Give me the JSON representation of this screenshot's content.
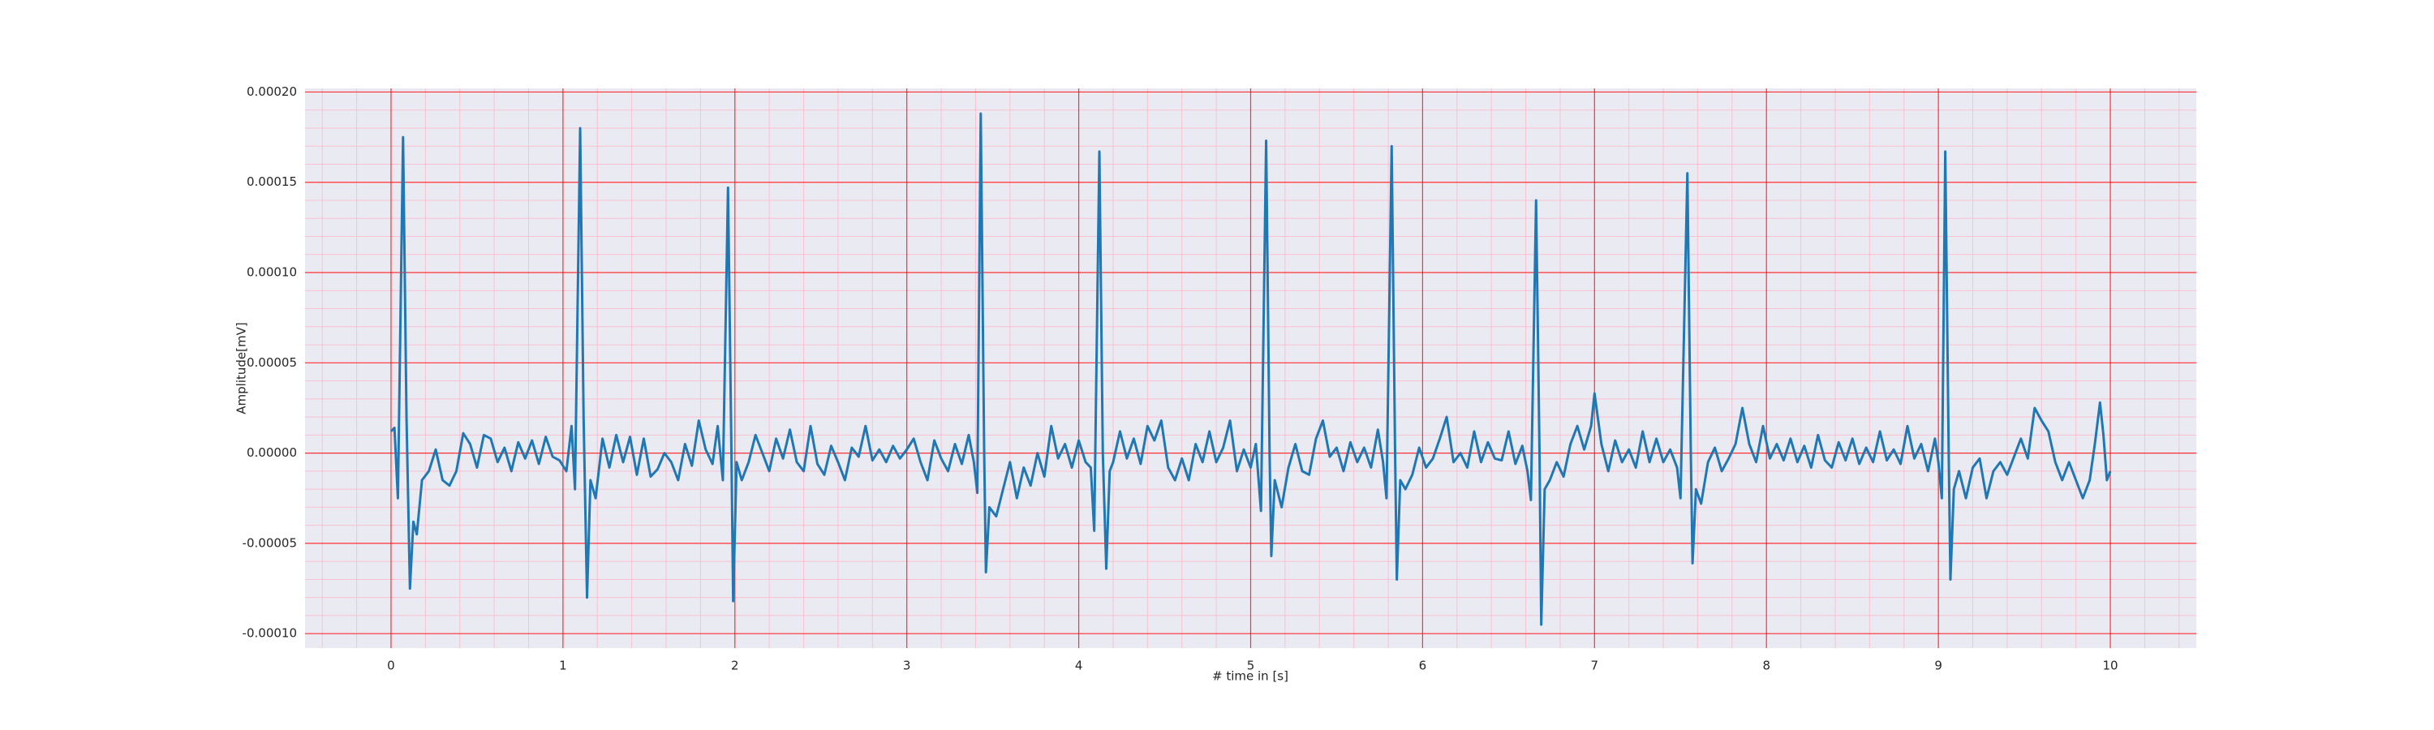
{
  "chart_data": {
    "type": "line",
    "xlabel": "# time in [s]",
    "ylabel": "Amplitude[mV]",
    "xlim": [
      -0.5,
      10.5
    ],
    "ylim": [
      -0.000108,
      0.000202
    ],
    "xticks": [
      0,
      1,
      2,
      3,
      4,
      5,
      6,
      7,
      8,
      9,
      10
    ],
    "yticks": [
      {
        "value": -0.0001,
        "label": "-0.00010"
      },
      {
        "value": -5e-05,
        "label": "-0.00005"
      },
      {
        "value": 0,
        "label": "0.00000"
      },
      {
        "value": 5e-05,
        "label": "0.00005"
      },
      {
        "value": 0.0001,
        "label": "0.00010"
      },
      {
        "value": 0.00015,
        "label": "0.00015"
      },
      {
        "value": 0.0002,
        "label": "0.00020"
      }
    ],
    "grid": true,
    "grid_color": "#ff0000",
    "minor_grid": {
      "x_step": 0.2,
      "y_step": 1e-05,
      "color": "#ffb6c8"
    },
    "background": "#eaeaf2",
    "x": [
      0,
      0.02,
      0.04,
      0.07,
      0.09,
      0.11,
      0.13,
      0.15,
      0.18,
      0.22,
      0.26,
      0.3,
      0.34,
      0.38,
      0.42,
      0.46,
      0.5,
      0.54,
      0.58,
      0.62,
      0.66,
      0.7,
      0.74,
      0.78,
      0.82,
      0.86,
      0.9,
      0.94,
      0.98,
      1.02,
      1.05,
      1.07,
      1.1,
      1.12,
      1.14,
      1.16,
      1.19,
      1.23,
      1.27,
      1.31,
      1.35,
      1.39,
      1.43,
      1.47,
      1.51,
      1.55,
      1.59,
      1.63,
      1.67,
      1.71,
      1.75,
      1.79,
      1.83,
      1.87,
      1.9,
      1.93,
      1.96,
      1.98,
      1.99,
      2.01,
      2.04,
      2.08,
      2.12,
      2.16,
      2.2,
      2.24,
      2.28,
      2.32,
      2.36,
      2.4,
      2.44,
      2.48,
      2.52,
      2.56,
      2.6,
      2.64,
      2.68,
      2.72,
      2.76,
      2.8,
      2.84,
      2.88,
      2.92,
      2.96,
      3.0,
      3.04,
      3.08,
      3.12,
      3.16,
      3.2,
      3.24,
      3.28,
      3.32,
      3.36,
      3.39,
      3.41,
      3.43,
      3.45,
      3.46,
      3.48,
      3.52,
      3.56,
      3.6,
      3.64,
      3.68,
      3.72,
      3.76,
      3.8,
      3.84,
      3.88,
      3.92,
      3.96,
      4.0,
      4.04,
      4.07,
      4.09,
      4.12,
      4.14,
      4.16,
      4.18,
      4.2,
      4.24,
      4.28,
      4.32,
      4.36,
      4.4,
      4.44,
      4.48,
      4.52,
      4.56,
      4.6,
      4.64,
      4.68,
      4.72,
      4.76,
      4.8,
      4.84,
      4.88,
      4.92,
      4.96,
      5.0,
      5.03,
      5.06,
      5.09,
      5.11,
      5.12,
      5.14,
      5.18,
      5.22,
      5.26,
      5.3,
      5.34,
      5.38,
      5.42,
      5.46,
      5.5,
      5.54,
      5.58,
      5.62,
      5.66,
      5.7,
      5.74,
      5.77,
      5.79,
      5.82,
      5.84,
      5.85,
      5.87,
      5.9,
      5.94,
      5.98,
      6.02,
      6.06,
      6.1,
      6.14,
      6.18,
      6.22,
      6.26,
      6.3,
      6.34,
      6.38,
      6.42,
      6.46,
      6.5,
      6.54,
      6.58,
      6.61,
      6.63,
      6.66,
      6.68,
      6.69,
      6.71,
      6.74,
      6.78,
      6.82,
      6.86,
      6.9,
      6.94,
      6.98,
      7.0,
      7.04,
      7.08,
      7.12,
      7.16,
      7.2,
      7.24,
      7.28,
      7.32,
      7.36,
      7.4,
      7.44,
      7.48,
      7.5,
      7.54,
      7.56,
      7.57,
      7.59,
      7.62,
      7.66,
      7.7,
      7.74,
      7.78,
      7.82,
      7.86,
      7.9,
      7.94,
      7.98,
      8.02,
      8.06,
      8.1,
      8.14,
      8.18,
      8.22,
      8.26,
      8.3,
      8.34,
      8.38,
      8.42,
      8.46,
      8.5,
      8.54,
      8.58,
      8.62,
      8.66,
      8.7,
      8.74,
      8.78,
      8.82,
      8.86,
      8.9,
      8.94,
      8.98,
      9.0,
      9.02,
      9.04,
      9.06,
      9.07,
      9.09,
      9.12,
      9.16,
      9.2,
      9.24,
      9.28,
      9.32,
      9.36,
      9.4,
      9.44,
      9.48,
      9.52,
      9.56,
      9.6,
      9.64,
      9.68,
      9.72,
      9.76,
      9.8,
      9.84,
      9.88,
      9.91,
      9.94,
      9.96,
      9.98,
      10
    ],
    "series": [
      {
        "color": "#1f77b4",
        "values": [
          1.2e-05,
          1.4e-05,
          -2.5e-05,
          0.000175,
          2e-05,
          -7.5e-05,
          -3.8e-05,
          -4.5e-05,
          -1.5e-05,
          -1e-05,
          2e-06,
          -1.5e-05,
          -1.8e-05,
          -1e-05,
          1.1e-05,
          5e-06,
          -8e-06,
          1e-05,
          8e-06,
          -5e-06,
          3e-06,
          -1e-05,
          6e-06,
          -3e-06,
          7e-06,
          -6e-06,
          9e-06,
          -2e-06,
          -4e-06,
          -1e-05,
          1.5e-05,
          -2e-05,
          0.00018,
          2e-05,
          -8e-05,
          -1.5e-05,
          -2.5e-05,
          8e-06,
          -8e-06,
          1e-05,
          -5e-06,
          9e-06,
          -1.2e-05,
          8e-06,
          -1.3e-05,
          -9e-06,
          0,
          -5e-06,
          -1.5e-05,
          5e-06,
          -7e-06,
          1.8e-05,
          2e-06,
          -6e-06,
          1.5e-05,
          -1.5e-05,
          0.000147,
          0,
          -8.2e-05,
          -5e-06,
          -1.5e-05,
          -5e-06,
          1e-05,
          0,
          -1e-05,
          8e-06,
          -3e-06,
          1.3e-05,
          -5e-06,
          -1e-05,
          1.5e-05,
          -6e-06,
          -1.2e-05,
          4e-06,
          -5e-06,
          -1.5e-05,
          3e-06,
          -2e-06,
          1.5e-05,
          -4e-06,
          2e-06,
          -5e-06,
          4e-06,
          -3e-06,
          2e-06,
          8e-06,
          -5e-06,
          -1.5e-05,
          7e-06,
          -3e-06,
          -1e-05,
          5e-06,
          -6e-06,
          1e-05,
          -5e-06,
          -2.2e-05,
          0.000188,
          0,
          -6.6e-05,
          -3e-05,
          -3.5e-05,
          -2e-05,
          -5e-06,
          -2.5e-05,
          -8e-06,
          -1.8e-05,
          0,
          -1.3e-05,
          1.5e-05,
          -3e-06,
          5e-06,
          -8e-06,
          7e-06,
          -5e-06,
          -8e-06,
          -4.3e-05,
          0.000167,
          0,
          -6.4e-05,
          -1e-05,
          -5e-06,
          1.2e-05,
          -3e-06,
          8e-06,
          -6e-06,
          1.5e-05,
          7e-06,
          1.8e-05,
          -8e-06,
          -1.5e-05,
          -3e-06,
          -1.5e-05,
          5e-06,
          -5e-06,
          1.2e-05,
          -5e-06,
          3e-06,
          1.8e-05,
          -1e-05,
          2e-06,
          -8e-06,
          5e-06,
          -3.2e-05,
          0.000173,
          0,
          -5.7e-05,
          -1.5e-05,
          -3e-05,
          -8e-06,
          5e-06,
          -1e-05,
          -1.2e-05,
          8e-06,
          1.8e-05,
          -2e-06,
          3e-06,
          -1e-05,
          6e-06,
          -5e-06,
          3e-06,
          -8e-06,
          1.3e-05,
          -5e-06,
          -2.5e-05,
          0.00017,
          0,
          -7e-05,
          -1.5e-05,
          -2e-05,
          -1.2e-05,
          3e-06,
          -8e-06,
          -3e-06,
          8e-06,
          2e-05,
          -5e-06,
          0,
          -8e-06,
          1.2e-05,
          -5e-06,
          6e-06,
          -3e-06,
          -4e-06,
          1.2e-05,
          -6e-06,
          4e-06,
          -1e-05,
          -2.6e-05,
          0.00014,
          0,
          -9.5e-05,
          -2e-05,
          -1.5e-05,
          -5e-06,
          -1.3e-05,
          5e-06,
          1.5e-05,
          2e-06,
          1.5e-05,
          3.3e-05,
          5e-06,
          -1e-05,
          7e-06,
          -5e-06,
          2e-06,
          -8e-06,
          1.2e-05,
          -5e-06,
          8e-06,
          -5e-06,
          2e-06,
          -8e-06,
          -2.5e-05,
          0.000155,
          0,
          -6.1e-05,
          -2e-05,
          -2.8e-05,
          -5e-06,
          3e-06,
          -1e-05,
          -3e-06,
          5e-06,
          2.5e-05,
          5e-06,
          -5e-06,
          1.5e-05,
          -3e-06,
          5e-06,
          -4e-06,
          8e-06,
          -5e-06,
          4e-06,
          -8e-06,
          1e-05,
          -4e-06,
          -8e-06,
          6e-06,
          -4e-06,
          8e-06,
          -6e-06,
          3e-06,
          -5e-06,
          1.2e-05,
          -4e-06,
          2e-06,
          -6e-06,
          1.5e-05,
          -3e-06,
          5e-06,
          -1e-05,
          8e-06,
          -5e-06,
          -2.5e-05,
          0.000167,
          0,
          -7e-05,
          -2e-05,
          -1e-05,
          -2.5e-05,
          -8e-06,
          -3e-06,
          -2.5e-05,
          -1e-05,
          -5e-06,
          -1.2e-05,
          -2e-06,
          8e-06,
          -3e-06,
          2.5e-05,
          1.8e-05,
          1.2e-05,
          -5e-06,
          -1.5e-05,
          -5e-06,
          -1.5e-05,
          -2.5e-05,
          -1.5e-05,
          5e-06,
          2.8e-05,
          1e-05,
          -1.5e-05,
          -1e-05
        ]
      }
    ]
  }
}
